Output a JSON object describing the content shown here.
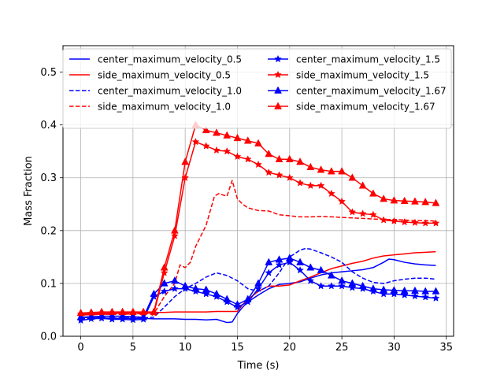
{
  "chart_data": {
    "type": "line",
    "title": "",
    "xlabel": "Time (s)",
    "ylabel": "Mass Fraction",
    "xlim": [
      -1.7,
      35.7
    ],
    "ylim": [
      0,
      0.55
    ],
    "xticks": [
      0,
      5,
      10,
      15,
      20,
      25,
      30,
      35
    ],
    "yticks": [
      0.0,
      0.1,
      0.2,
      0.3,
      0.4,
      0.5
    ],
    "xtick_labels": [
      "0",
      "5",
      "10",
      "15",
      "20",
      "25",
      "30",
      "35"
    ],
    "ytick_labels": [
      "0.0",
      "0.1",
      "0.2",
      "0.3",
      "0.4",
      "0.5"
    ],
    "grid": true,
    "legend": {
      "position": "top",
      "columns": 2
    },
    "series": [
      {
        "name": "center_maximum_velocity_0.5",
        "color": "#0000ff",
        "dash": "solid",
        "marker": "none",
        "x": [
          0,
          1,
          2,
          3,
          4,
          5,
          6,
          7,
          8,
          9,
          10,
          11,
          12,
          13,
          14,
          14.5,
          15,
          15.5,
          16,
          17,
          18,
          19,
          20,
          21,
          22,
          23,
          24,
          25,
          26,
          27,
          28,
          29,
          29.5,
          30,
          31,
          32,
          33,
          34
        ],
        "y": [
          0.036,
          0.035,
          0.035,
          0.034,
          0.034,
          0.034,
          0.034,
          0.033,
          0.033,
          0.033,
          0.032,
          0.032,
          0.031,
          0.032,
          0.026,
          0.027,
          0.043,
          0.055,
          0.065,
          0.078,
          0.09,
          0.098,
          0.1,
          0.103,
          0.11,
          0.116,
          0.12,
          0.122,
          0.124,
          0.126,
          0.13,
          0.14,
          0.146,
          0.145,
          0.14,
          0.137,
          0.135,
          0.134
        ]
      },
      {
        "name": "side_maximum_velocity_0.5",
        "color": "#ff0000",
        "dash": "solid",
        "marker": "none",
        "x": [
          0,
          1,
          2,
          3,
          4,
          5,
          6,
          7,
          8,
          9,
          10,
          11,
          12,
          13,
          14,
          15,
          15.5,
          16,
          17,
          18,
          19,
          20,
          21,
          22,
          23,
          24,
          25,
          26,
          27,
          28,
          29,
          30,
          31,
          32,
          33,
          34
        ],
        "y": [
          0.04,
          0.041,
          0.042,
          0.043,
          0.044,
          0.045,
          0.045,
          0.045,
          0.045,
          0.046,
          0.046,
          0.046,
          0.046,
          0.047,
          0.047,
          0.047,
          0.06,
          0.07,
          0.085,
          0.095,
          0.095,
          0.097,
          0.105,
          0.112,
          0.12,
          0.128,
          0.133,
          0.138,
          0.142,
          0.148,
          0.152,
          0.154,
          0.156,
          0.158,
          0.159,
          0.16
        ]
      },
      {
        "name": "center_maximum_velocity_1.0",
        "color": "#0000ff",
        "dash": "dashed",
        "marker": "none",
        "x": [
          0,
          1,
          2,
          3,
          4,
          5,
          6,
          7,
          8,
          9,
          10,
          11,
          12,
          13,
          14,
          15,
          16,
          17,
          18,
          19,
          20,
          21,
          21.5,
          22,
          23,
          24,
          25,
          26,
          27,
          28,
          29,
          30,
          31,
          32,
          33,
          34
        ],
        "y": [
          0.033,
          0.034,
          0.034,
          0.034,
          0.035,
          0.035,
          0.035,
          0.036,
          0.055,
          0.075,
          0.09,
          0.1,
          0.112,
          0.12,
          0.115,
          0.105,
          0.09,
          0.085,
          0.095,
          0.12,
          0.15,
          0.163,
          0.166,
          0.165,
          0.158,
          0.15,
          0.14,
          0.122,
          0.11,
          0.102,
          0.1,
          0.105,
          0.108,
          0.11,
          0.11,
          0.108
        ]
      },
      {
        "name": "side_maximum_velocity_1.0",
        "color": "#ff0000",
        "dash": "dashed",
        "marker": "none",
        "x": [
          0,
          1,
          2,
          3,
          4,
          5,
          6,
          7,
          8,
          9,
          9.5,
          10,
          10.5,
          11,
          12,
          12.8,
          13.2,
          14,
          14.5,
          15,
          15.5,
          16,
          17,
          18,
          19,
          20,
          21,
          22,
          23,
          24,
          25,
          26,
          27,
          28,
          29,
          30,
          31,
          32,
          33,
          34
        ],
        "y": [
          0.04,
          0.041,
          0.041,
          0.042,
          0.042,
          0.042,
          0.043,
          0.043,
          0.075,
          0.1,
          0.135,
          0.13,
          0.14,
          0.17,
          0.21,
          0.265,
          0.27,
          0.265,
          0.295,
          0.26,
          0.25,
          0.243,
          0.238,
          0.237,
          0.23,
          0.228,
          0.226,
          0.226,
          0.227,
          0.226,
          0.225,
          0.224,
          0.223,
          0.222,
          0.221,
          0.221,
          0.22,
          0.219,
          0.219,
          0.218
        ]
      },
      {
        "name": "center_maximum_velocity_1.5",
        "color": "#0000ff",
        "dash": "solid",
        "marker": "star",
        "x": [
          0,
          1,
          2,
          3,
          4,
          5,
          6,
          7,
          8,
          9,
          10,
          11,
          12,
          13,
          14,
          15,
          16,
          17,
          18,
          19,
          20,
          21,
          22,
          23,
          24,
          25,
          26,
          27,
          28,
          29,
          30,
          31,
          32,
          33,
          34
        ],
        "y": [
          0.03,
          0.033,
          0.034,
          0.032,
          0.032,
          0.031,
          0.032,
          0.075,
          0.085,
          0.09,
          0.09,
          0.085,
          0.08,
          0.075,
          0.065,
          0.055,
          0.065,
          0.09,
          0.12,
          0.135,
          0.14,
          0.125,
          0.105,
          0.095,
          0.095,
          0.095,
          0.092,
          0.09,
          0.085,
          0.08,
          0.08,
          0.078,
          0.076,
          0.074,
          0.072
        ]
      },
      {
        "name": "side_maximum_velocity_1.5",
        "color": "#ff0000",
        "dash": "solid",
        "marker": "star",
        "x": [
          0,
          1,
          2,
          3,
          4,
          5,
          6,
          7,
          8,
          9,
          10,
          11,
          12,
          13,
          14,
          15,
          16,
          17,
          18,
          19,
          20,
          21,
          22,
          23,
          24,
          25,
          26,
          27,
          28,
          29,
          30,
          31,
          32,
          33,
          34
        ],
        "y": [
          0.042,
          0.043,
          0.044,
          0.044,
          0.044,
          0.044,
          0.044,
          0.044,
          0.12,
          0.19,
          0.3,
          0.368,
          0.36,
          0.352,
          0.35,
          0.34,
          0.335,
          0.325,
          0.31,
          0.305,
          0.3,
          0.29,
          0.285,
          0.285,
          0.27,
          0.255,
          0.235,
          0.232,
          0.23,
          0.22,
          0.218,
          0.216,
          0.215,
          0.214,
          0.214
        ]
      },
      {
        "name": "center_maximum_velocity_1.67",
        "color": "#0000ff",
        "dash": "solid",
        "marker": "triangle",
        "x": [
          0,
          1,
          2,
          3,
          4,
          5,
          6,
          7,
          8,
          9,
          10,
          11,
          12,
          13,
          14,
          15,
          16,
          17,
          18,
          19,
          20,
          21,
          22,
          23,
          24,
          25,
          26,
          27,
          28,
          29,
          30,
          31,
          32,
          33,
          34
        ],
        "y": [
          0.036,
          0.037,
          0.038,
          0.038,
          0.038,
          0.037,
          0.036,
          0.08,
          0.1,
          0.105,
          0.095,
          0.09,
          0.088,
          0.08,
          0.07,
          0.06,
          0.07,
          0.1,
          0.14,
          0.145,
          0.148,
          0.14,
          0.13,
          0.125,
          0.115,
          0.105,
          0.1,
          0.095,
          0.09,
          0.088,
          0.087,
          0.086,
          0.086,
          0.085,
          0.085
        ]
      },
      {
        "name": "side_maximum_velocity_1.67",
        "color": "#ff0000",
        "dash": "solid",
        "marker": "triangle",
        "x": [
          0,
          1,
          2,
          3,
          4,
          5,
          6,
          7,
          8,
          9,
          10,
          11,
          12,
          13,
          14,
          15,
          16,
          17,
          18,
          19,
          20,
          21,
          22,
          23,
          24,
          25,
          26,
          27,
          28,
          29,
          30,
          31,
          32,
          33,
          34
        ],
        "y": [
          0.044,
          0.045,
          0.046,
          0.046,
          0.046,
          0.046,
          0.046,
          0.046,
          0.13,
          0.2,
          0.33,
          0.4,
          0.39,
          0.385,
          0.38,
          0.375,
          0.37,
          0.365,
          0.345,
          0.335,
          0.335,
          0.33,
          0.32,
          0.315,
          0.312,
          0.312,
          0.3,
          0.285,
          0.27,
          0.26,
          0.257,
          0.256,
          0.255,
          0.254,
          0.252
        ]
      }
    ]
  }
}
